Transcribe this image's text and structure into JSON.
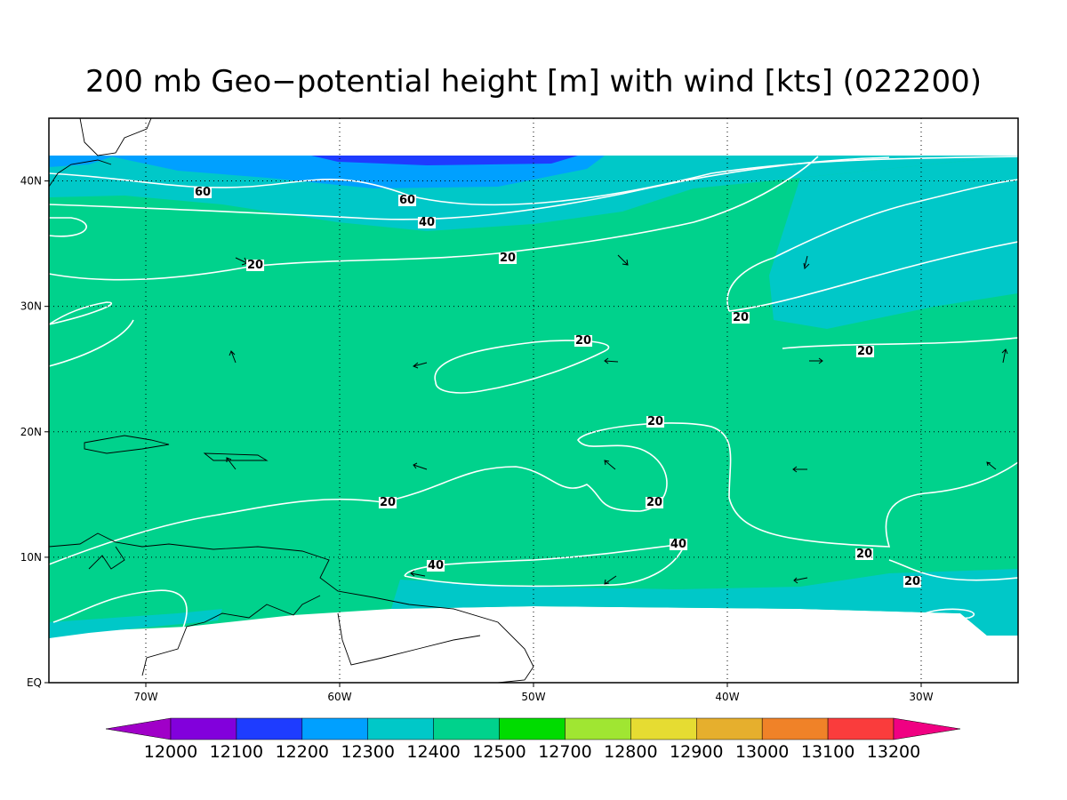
{
  "map": {
    "title": "200 mb Geo−potential height [m] with wind [kts] (022200)",
    "lonlim": [
      -75,
      -25
    ],
    "latlim": [
      0,
      45
    ],
    "lon_ticks": [
      {
        "value": -70,
        "label": "70W"
      },
      {
        "value": -60,
        "label": "60W"
      },
      {
        "value": -50,
        "label": "50W"
      },
      {
        "value": -40,
        "label": "40W"
      },
      {
        "value": -30,
        "label": "30W"
      }
    ],
    "lat_ticks": [
      {
        "value": 0,
        "label": "EQ"
      },
      {
        "value": 10,
        "label": "10N"
      },
      {
        "value": 20,
        "label": "20N"
      },
      {
        "value": 30,
        "label": "30N"
      },
      {
        "value": 40,
        "label": "40N"
      }
    ],
    "contour_labels": [
      60,
      60,
      40,
      20,
      20,
      20,
      20,
      20,
      20,
      20,
      40,
      40,
      20,
      20
    ],
    "colorbar": {
      "levels": [
        12000,
        12100,
        12200,
        12300,
        12400,
        12500,
        12700,
        12800,
        12900,
        13000,
        13100,
        13200
      ],
      "colors": [
        "#a000c8",
        "#8200dc",
        "#1e3cff",
        "#00a0ff",
        "#00c8c8",
        "#00d28c",
        "#00dc00",
        "#a0e632",
        "#e6dc32",
        "#e6af2d",
        "#f08228",
        "#fa3c3c",
        "#f00082"
      ]
    }
  }
}
